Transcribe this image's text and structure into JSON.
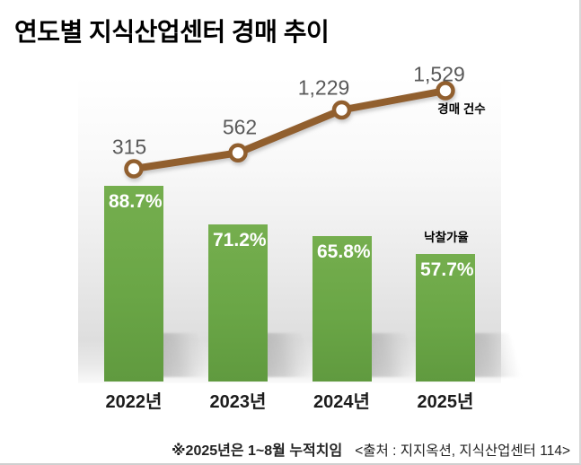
{
  "title": "연도별 지식산업센터 경매 추이",
  "chart_data": {
    "type": "combo",
    "title": "연도별 지식산업센터 경매 추이",
    "categories": [
      "2022년",
      "2023년",
      "2024년",
      "2025년"
    ],
    "series": [
      {
        "name": "경매 건수",
        "chart": "line",
        "values": [
          315,
          562,
          1229,
          1529
        ],
        "labels": [
          "315",
          "562",
          "1,229",
          "1,529"
        ],
        "color": "#915e2e",
        "marker": "open-circle"
      },
      {
        "name": "낙찰가율",
        "chart": "bar",
        "unit": "%",
        "values": [
          88.7,
          71.2,
          65.8,
          57.7
        ],
        "labels": [
          "88.7%",
          "71.2%",
          "65.8%",
          "57.7%"
        ],
        "color": "#6aa646",
        "ylim": [
          0,
          100
        ]
      }
    ],
    "grid": false,
    "legend_position": "inline-annotations"
  },
  "footnote": {
    "note": "※2025년은 1~8월 누적치임",
    "source": "<출처 : 지지옥션, 지식산업센터 114>"
  },
  "colors": {
    "bar_green": "#6aa646",
    "line_brown": "#915e2e",
    "value_label_gray": "#595959",
    "plot_bg_gray": "#dedede"
  }
}
